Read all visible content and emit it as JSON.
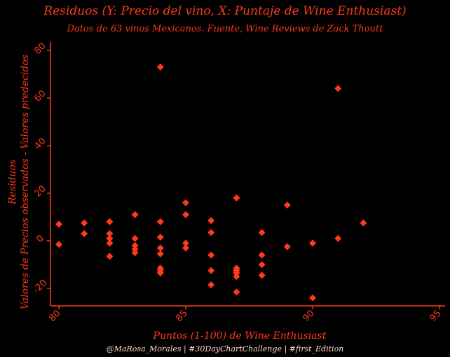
{
  "chart_data": {
    "type": "scatter",
    "title": "Residuos (Y: Precio del vino, X: Puntaje de Wine Enthusiast)",
    "subtitle": "Datos de 63 vinos Mexicanos. Fuente, Wine Reviews de Zack Thoutt",
    "caption": "@MaRosa_Morales | #30DayChartChallenge | #first_Edition",
    "xlabel": "Puntos (1-100) de Wine Enthusiast",
    "ylabel_line1": "Residuos",
    "ylabel_line2": "Valores de Precios observados - Valores predecidos",
    "xlim": [
      79.7,
      95
    ],
    "ylim": [
      -27,
      83
    ],
    "x_ticks": [
      80,
      85,
      90,
      95
    ],
    "y_ticks": [
      -20,
      0,
      20,
      40,
      60,
      80
    ],
    "marker": "diamond",
    "grid": false,
    "legend": "none",
    "colors": {
      "background": "#000000",
      "accent": "#ff3a1a",
      "caption": "#ffd8c8"
    },
    "points": [
      [
        80,
        7
      ],
      [
        80,
        -1.5
      ],
      [
        81,
        7.5
      ],
      [
        81,
        3
      ],
      [
        82,
        8
      ],
      [
        82,
        3
      ],
      [
        82,
        1
      ],
      [
        82,
        -1
      ],
      [
        82,
        -6.5
      ],
      [
        83,
        11
      ],
      [
        83,
        1
      ],
      [
        83,
        -2
      ],
      [
        83,
        -3.5
      ],
      [
        83,
        -5
      ],
      [
        84,
        73
      ],
      [
        84,
        8
      ],
      [
        84,
        1.5
      ],
      [
        84,
        -3
      ],
      [
        84,
        -5.5
      ],
      [
        84,
        -11.5
      ],
      [
        84,
        -12.5
      ],
      [
        84,
        -13.5
      ],
      [
        85,
        16
      ],
      [
        85,
        11
      ],
      [
        85,
        -1
      ],
      [
        85,
        -3
      ],
      [
        86,
        8.5
      ],
      [
        86,
        3.5
      ],
      [
        86,
        -6
      ],
      [
        86,
        -12.5
      ],
      [
        86,
        -18.5
      ],
      [
        87,
        18
      ],
      [
        87,
        -11.5
      ],
      [
        87,
        -12.5
      ],
      [
        87,
        -13.5
      ],
      [
        87,
        -15
      ],
      [
        87,
        -21.5
      ],
      [
        88,
        3.5
      ],
      [
        88,
        -6
      ],
      [
        88,
        -10
      ],
      [
        88,
        -14.5
      ],
      [
        89,
        15
      ],
      [
        89,
        -2.5
      ],
      [
        90,
        -1
      ],
      [
        90,
        -24
      ],
      [
        91,
        64
      ],
      [
        91,
        1
      ],
      [
        92,
        7.5
      ]
    ]
  }
}
